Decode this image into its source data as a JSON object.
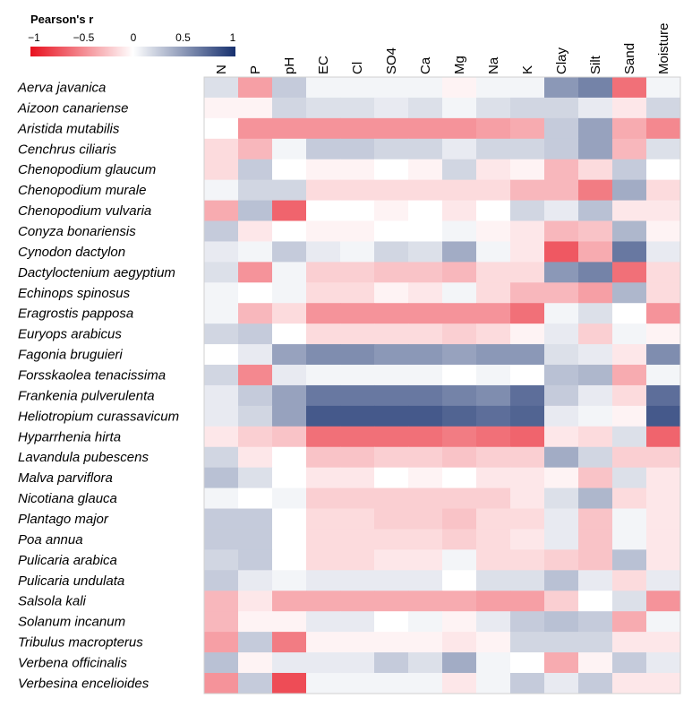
{
  "chart_data": {
    "type": "heatmap",
    "legend": {
      "title": "Pearson's r",
      "tick_labels": [
        "−1",
        "−0.5",
        "0",
        "0.5",
        "1"
      ],
      "range": [
        -1,
        1
      ],
      "colors": {
        "negative": "#e8101e",
        "zero": "#ffffff",
        "positive": "#17306e"
      }
    },
    "columns": [
      "N",
      "P",
      "pH",
      "EC",
      "Cl",
      "SO4",
      "Ca",
      "Mg",
      "Na",
      "K",
      "Clay",
      "Silt",
      "Sand",
      "Moisture"
    ],
    "rows": [
      "Aerva javanica",
      "Aizoon canariense",
      "Aristida mutabilis",
      "Cenchrus ciliaris",
      "Chenopodium glaucum",
      "Chenopodium murale",
      "Chenopodium vulvaria",
      "Conyza bonariensis",
      "Cynodon dactylon",
      "Dactyloctenium aegyptium",
      "Echinops spinosus",
      "Eragrostis papposa",
      "Euryops arabicus",
      "Fagonia bruguieri",
      "Forsskaolea tenacissima",
      "Frankenia pulverulenta",
      "Heliotropium curassavicum",
      "Hyparrhenia hirta",
      "Lavandula pubescens",
      "Malva parviflora",
      "Nicotiana glauca",
      "Plantago major",
      "Poa annua",
      "Pulicaria arabica",
      "Pulicaria undulata",
      "Salsola kali",
      "Solanum incanum",
      "Tribulus macropterus",
      "Verbena officinalis",
      "Verbesina encelioides"
    ],
    "values": [
      [
        0.15,
        -0.4,
        0.25,
        0.05,
        0.05,
        0.05,
        0.05,
        -0.05,
        0.05,
        0.05,
        0.5,
        0.6,
        -0.6,
        0.05
      ],
      [
        -0.05,
        -0.05,
        0.2,
        0.15,
        0.15,
        0.1,
        0.15,
        0.05,
        0.15,
        0.2,
        0.2,
        0.1,
        -0.1,
        0.2
      ],
      [
        0.0,
        -0.45,
        -0.45,
        -0.45,
        -0.45,
        -0.45,
        -0.45,
        -0.45,
        -0.4,
        -0.35,
        0.25,
        0.45,
        -0.35,
        -0.5
      ],
      [
        -0.15,
        -0.3,
        0.05,
        0.25,
        0.25,
        0.2,
        0.2,
        0.1,
        0.2,
        0.2,
        0.25,
        0.45,
        -0.3,
        0.15
      ],
      [
        -0.15,
        0.25,
        0.0,
        -0.05,
        -0.05,
        0.0,
        -0.05,
        0.2,
        -0.1,
        -0.05,
        -0.3,
        -0.15,
        0.25,
        0.0
      ],
      [
        0.05,
        0.2,
        0.2,
        -0.15,
        -0.15,
        -0.15,
        -0.15,
        -0.15,
        -0.15,
        -0.3,
        -0.3,
        -0.55,
        0.4,
        -0.15
      ],
      [
        -0.35,
        0.3,
        -0.65,
        0.0,
        0.0,
        -0.05,
        0.0,
        -0.1,
        0.0,
        0.2,
        0.1,
        0.3,
        -0.1,
        -0.1
      ],
      [
        0.25,
        -0.1,
        0.0,
        -0.05,
        -0.05,
        0.0,
        0.0,
        0.05,
        -0.05,
        -0.1,
        -0.3,
        -0.25,
        0.35,
        -0.05
      ],
      [
        0.1,
        0.05,
        0.25,
        0.1,
        0.05,
        0.2,
        0.15,
        0.4,
        0.05,
        -0.1,
        -0.7,
        -0.35,
        0.65,
        0.1
      ],
      [
        0.15,
        -0.45,
        0.05,
        -0.2,
        -0.2,
        -0.25,
        -0.25,
        -0.3,
        -0.15,
        -0.15,
        0.5,
        0.6,
        -0.6,
        -0.15
      ],
      [
        0.05,
        0.0,
        0.05,
        -0.15,
        -0.15,
        -0.05,
        -0.1,
        0.05,
        -0.15,
        -0.3,
        -0.3,
        -0.4,
        0.35,
        -0.15
      ],
      [
        0.05,
        -0.3,
        -0.15,
        -0.45,
        -0.45,
        -0.45,
        -0.45,
        -0.45,
        -0.45,
        -0.6,
        0.05,
        0.15,
        0.0,
        -0.45
      ],
      [
        0.2,
        0.25,
        0.0,
        -0.15,
        -0.15,
        -0.15,
        -0.15,
        -0.2,
        -0.15,
        -0.05,
        0.1,
        -0.2,
        0.05,
        -0.05
      ],
      [
        0.0,
        0.1,
        0.45,
        0.55,
        0.55,
        0.5,
        0.5,
        0.45,
        0.5,
        0.5,
        0.15,
        0.1,
        -0.1,
        0.55
      ],
      [
        0.2,
        -0.5,
        0.1,
        0.05,
        0.05,
        0.05,
        0.05,
        0.0,
        0.05,
        0.0,
        0.3,
        0.35,
        -0.35,
        0.05
      ],
      [
        0.1,
        0.25,
        0.45,
        0.65,
        0.65,
        0.65,
        0.65,
        0.6,
        0.55,
        0.7,
        0.25,
        0.1,
        -0.15,
        0.7
      ],
      [
        0.1,
        0.2,
        0.45,
        0.8,
        0.8,
        0.8,
        0.8,
        0.75,
        0.7,
        0.75,
        0.1,
        0.05,
        -0.05,
        0.8
      ],
      [
        -0.1,
        -0.2,
        -0.25,
        -0.6,
        -0.6,
        -0.6,
        -0.6,
        -0.55,
        -0.6,
        -0.65,
        -0.1,
        -0.15,
        0.15,
        -0.65
      ],
      [
        0.2,
        -0.1,
        0.0,
        -0.25,
        -0.25,
        -0.2,
        -0.2,
        -0.25,
        -0.2,
        -0.2,
        0.4,
        0.2,
        -0.2,
        -0.2
      ],
      [
        0.3,
        0.15,
        0.0,
        -0.1,
        -0.1,
        0.0,
        -0.05,
        0.0,
        -0.1,
        -0.1,
        -0.05,
        -0.25,
        0.15,
        -0.1
      ],
      [
        0.05,
        0.0,
        0.05,
        -0.2,
        -0.2,
        -0.2,
        -0.2,
        -0.2,
        -0.2,
        -0.1,
        0.15,
        0.35,
        -0.15,
        -0.1
      ],
      [
        0.25,
        0.25,
        0.0,
        -0.15,
        -0.15,
        -0.2,
        -0.2,
        -0.25,
        -0.15,
        -0.15,
        0.1,
        -0.25,
        0.05,
        -0.1
      ],
      [
        0.25,
        0.25,
        0.0,
        -0.15,
        -0.15,
        -0.15,
        -0.15,
        -0.2,
        -0.15,
        -0.1,
        0.1,
        -0.25,
        0.05,
        -0.1
      ],
      [
        0.2,
        0.25,
        0.0,
        -0.15,
        -0.15,
        -0.1,
        -0.1,
        0.05,
        -0.15,
        -0.15,
        -0.2,
        -0.25,
        0.3,
        -0.1
      ],
      [
        0.25,
        0.1,
        0.05,
        0.1,
        0.1,
        0.1,
        0.1,
        0.0,
        0.15,
        0.15,
        0.3,
        0.1,
        -0.15,
        0.1
      ],
      [
        -0.3,
        -0.1,
        -0.35,
        -0.35,
        -0.35,
        -0.35,
        -0.35,
        -0.35,
        -0.4,
        -0.4,
        -0.2,
        0.0,
        0.15,
        -0.45
      ],
      [
        -0.3,
        -0.05,
        -0.05,
        0.1,
        0.1,
        0.0,
        0.05,
        -0.05,
        0.1,
        0.25,
        0.3,
        0.25,
        -0.35,
        0.05
      ],
      [
        -0.4,
        0.25,
        -0.55,
        -0.05,
        -0.05,
        -0.05,
        -0.05,
        -0.1,
        -0.05,
        0.2,
        0.2,
        0.2,
        -0.1,
        -0.1
      ],
      [
        0.3,
        -0.05,
        0.1,
        0.1,
        0.1,
        0.25,
        0.15,
        0.4,
        0.05,
        0.0,
        -0.35,
        -0.05,
        0.25,
        0.1
      ],
      [
        -0.45,
        0.25,
        -0.75,
        0.05,
        0.05,
        0.05,
        0.05,
        -0.1,
        0.05,
        0.25,
        0.1,
        0.25,
        -0.1,
        -0.1
      ]
    ]
  }
}
